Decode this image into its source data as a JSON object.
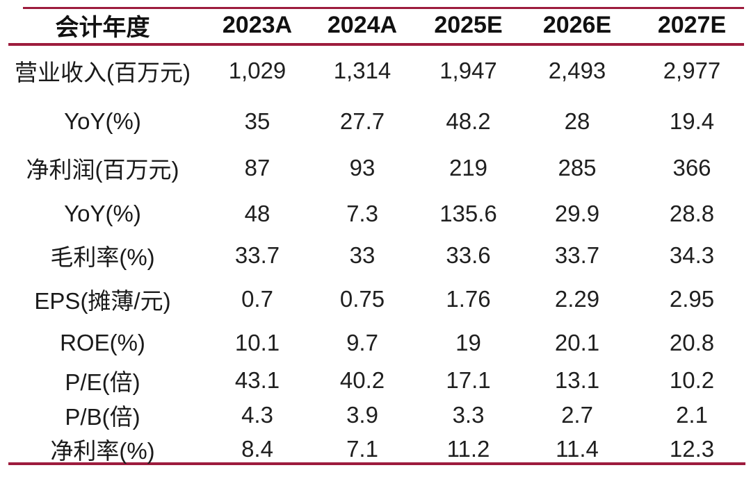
{
  "chart_data": {
    "type": "table",
    "title": "财务摘要表",
    "columns": [
      "会计年度",
      "2023A",
      "2024A",
      "2025E",
      "2026E",
      "2027E"
    ],
    "rows": [
      [
        "营业收入(百万元)",
        "1,029",
        "1,314",
        "1,947",
        "2,493",
        "2,977"
      ],
      [
        "YoY(%)",
        "35",
        "27.7",
        "48.2",
        "28",
        "19.4"
      ],
      [
        "净利润(百万元)",
        "87",
        "93",
        "219",
        "285",
        "366"
      ],
      [
        "YoY(%)",
        "48",
        "7.3",
        "135.6",
        "29.9",
        "28.8"
      ],
      [
        "毛利率(%)",
        "33.7",
        "33",
        "33.6",
        "33.7",
        "34.3"
      ],
      [
        "EPS(摊薄/元)",
        "0.7",
        "0.75",
        "1.76",
        "2.29",
        "2.95"
      ],
      [
        "ROE(%)",
        "10.1",
        "9.7",
        "19",
        "20.1",
        "20.8"
      ],
      [
        "P/E(倍)",
        "43.1",
        "40.2",
        "17.1",
        "13.1",
        "10.2"
      ],
      [
        "P/B(倍)",
        "4.3",
        "3.9",
        "3.3",
        "2.7",
        "2.1"
      ],
      [
        "净利率(%)",
        "8.4",
        "7.1",
        "11.2",
        "11.4",
        "12.3"
      ]
    ],
    "colors": {
      "rule": "#9D1C3D",
      "header_text": "#111111",
      "body_text": "#1f1f1f",
      "background": "#ffffff"
    },
    "layout_hints": {
      "grid": "off",
      "rules": [
        "top",
        "below-header",
        "bottom"
      ]
    }
  }
}
